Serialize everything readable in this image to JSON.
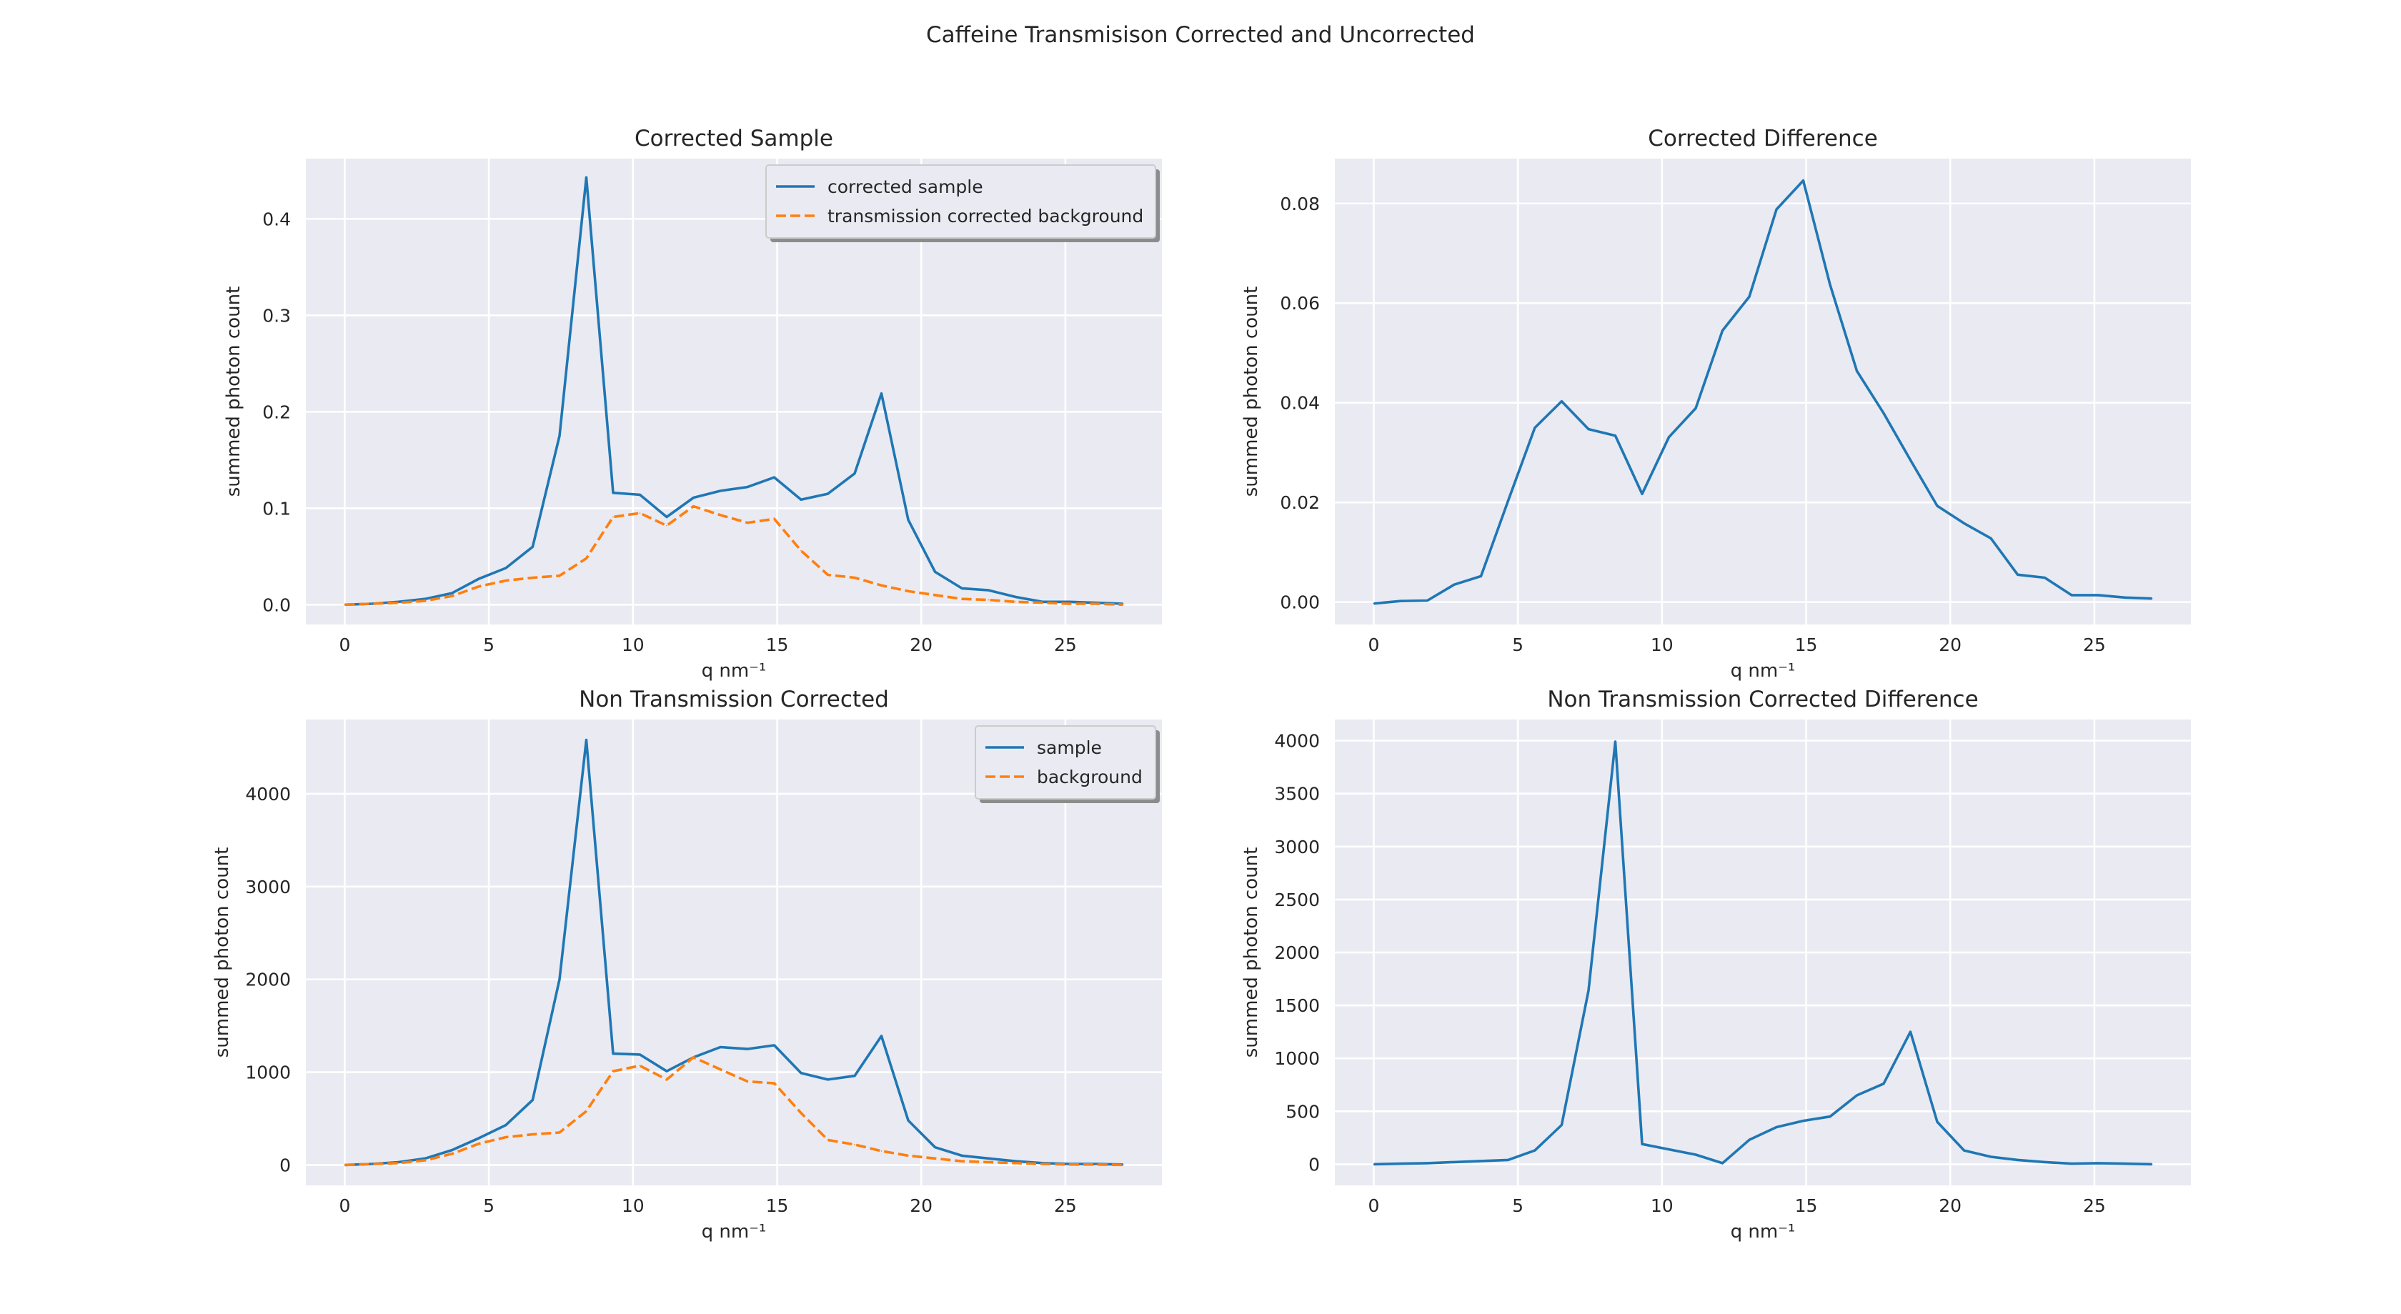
{
  "figure": {
    "suptitle": "Caffeine Transmisison Corrected and Uncorrected"
  },
  "colors": {
    "series_blue": "#1f77b4",
    "series_orange": "#ff7f0e",
    "panel_background": "#eaeaf2",
    "grid": "#ffffff"
  },
  "chart_data": [
    {
      "type": "line",
      "title": "Corrected Sample",
      "xlabel": "q nm⁻¹",
      "ylabel": "summed photon count",
      "xlim": [
        -1.35,
        28.35
      ],
      "ylim": [
        -0.0205,
        0.4625
      ],
      "xticks": [
        0,
        5,
        10,
        15,
        20,
        25
      ],
      "yticks": [
        0.0,
        0.1,
        0.2,
        0.3,
        0.4
      ],
      "ytick_labels": [
        "0.0",
        "0.1",
        "0.2",
        "0.3",
        "0.4"
      ],
      "grid": true,
      "legend": "top-right",
      "series": [
        {
          "name": "corrected sample",
          "style": "solid",
          "color": "#1f77b4",
          "x": [
            0,
            0.93,
            1.86,
            2.79,
            3.72,
            4.66,
            5.59,
            6.52,
            7.45,
            8.38,
            9.31,
            10.24,
            11.17,
            12.1,
            13.03,
            13.97,
            14.9,
            15.83,
            16.76,
            17.69,
            18.62,
            19.55,
            20.48,
            21.41,
            22.34,
            23.28,
            24.21,
            25.14,
            26.07,
            27.0
          ],
          "y": [
            0.0,
            0.001,
            0.003,
            0.006,
            0.012,
            0.027,
            0.038,
            0.06,
            0.175,
            0.443,
            0.116,
            0.114,
            0.091,
            0.111,
            0.118,
            0.122,
            0.132,
            0.109,
            0.115,
            0.136,
            0.219,
            0.088,
            0.034,
            0.017,
            0.015,
            0.008,
            0.003,
            0.003,
            0.002,
            0.001
          ]
        },
        {
          "name": "transmission corrected background",
          "style": "dashed",
          "color": "#ff7f0e",
          "x": [
            0,
            0.93,
            1.86,
            2.79,
            3.72,
            4.66,
            5.59,
            6.52,
            7.45,
            8.38,
            9.31,
            10.24,
            11.17,
            12.1,
            13.03,
            13.97,
            14.9,
            15.83,
            16.76,
            17.69,
            18.62,
            19.55,
            20.48,
            21.41,
            22.34,
            23.28,
            24.21,
            25.14,
            26.07,
            27.0
          ],
          "y": [
            0.0,
            0.001,
            0.002,
            0.004,
            0.009,
            0.019,
            0.025,
            0.028,
            0.03,
            0.048,
            0.091,
            0.095,
            0.082,
            0.102,
            0.093,
            0.085,
            0.089,
            0.056,
            0.031,
            0.028,
            0.02,
            0.014,
            0.01,
            0.006,
            0.005,
            0.003,
            0.002,
            0.001,
            0.001,
            0.0
          ]
        }
      ]
    },
    {
      "type": "line",
      "title": "Corrected Difference",
      "xlabel": "q nm⁻¹",
      "ylabel": "summed photon count",
      "xlim": [
        -1.35,
        28.35
      ],
      "ylim": [
        -0.0045,
        0.089
      ],
      "xticks": [
        0,
        5,
        10,
        15,
        20,
        25
      ],
      "yticks": [
        0.0,
        0.02,
        0.04,
        0.06,
        0.08
      ],
      "ytick_labels": [
        "0.00",
        "0.02",
        "0.04",
        "0.06",
        "0.08"
      ],
      "grid": true,
      "series": [
        {
          "color": "#1f77b4",
          "style": "solid",
          "x": [
            0,
            0.93,
            1.86,
            2.79,
            3.72,
            4.66,
            5.59,
            6.52,
            7.45,
            8.38,
            9.31,
            10.24,
            11.17,
            12.1,
            13.03,
            13.97,
            14.9,
            15.83,
            16.76,
            17.69,
            18.62,
            19.55,
            20.48,
            21.41,
            22.34,
            23.28,
            24.21,
            25.14,
            26.07,
            27.0
          ],
          "y": [
            -0.0003,
            0.0002,
            0.0003,
            0.0035,
            0.0052,
            0.0203,
            0.035,
            0.0403,
            0.0347,
            0.0334,
            0.0217,
            0.0331,
            0.0389,
            0.0545,
            0.0613,
            0.0788,
            0.0846,
            0.0637,
            0.0464,
            0.0379,
            0.0285,
            0.0193,
            0.0158,
            0.0128,
            0.0055,
            0.0049,
            0.0014,
            0.0014,
            0.0009,
            0.0007
          ]
        }
      ]
    },
    {
      "type": "line",
      "title": "Non Transmission Corrected",
      "xlabel": "q nm⁻¹",
      "ylabel": "summed photon count",
      "xlim": [
        -1.35,
        28.35
      ],
      "ylim": [
        -220,
        4800
      ],
      "xticks": [
        0,
        5,
        10,
        15,
        20,
        25
      ],
      "yticks": [
        0,
        1000,
        2000,
        3000,
        4000
      ],
      "ytick_labels": [
        "0",
        "1000",
        "2000",
        "3000",
        "4000"
      ],
      "grid": true,
      "legend": "top-right",
      "series": [
        {
          "name": "sample",
          "style": "solid",
          "color": "#1f77b4",
          "x": [
            0,
            0.93,
            1.86,
            2.79,
            3.72,
            4.66,
            5.59,
            6.52,
            7.45,
            8.38,
            9.31,
            10.24,
            11.17,
            12.1,
            13.03,
            13.97,
            14.9,
            15.83,
            16.76,
            17.69,
            18.62,
            19.55,
            20.48,
            21.41,
            22.34,
            23.28,
            24.21,
            25.14,
            26.07,
            27.0
          ],
          "y": [
            0,
            10,
            30,
            70,
            160,
            290,
            430,
            700,
            2000,
            4580,
            1200,
            1190,
            1010,
            1160,
            1270,
            1250,
            1290,
            990,
            920,
            960,
            1390,
            480,
            190,
            100,
            70,
            40,
            20,
            10,
            10,
            5
          ]
        },
        {
          "name": "background",
          "style": "dashed",
          "color": "#ff7f0e",
          "x": [
            0,
            0.93,
            1.86,
            2.79,
            3.72,
            4.66,
            5.59,
            6.52,
            7.45,
            8.38,
            9.31,
            10.24,
            11.17,
            12.1,
            13.03,
            13.97,
            14.9,
            15.83,
            16.76,
            17.69,
            18.62,
            19.55,
            20.48,
            21.41,
            22.34,
            23.28,
            24.21,
            25.14,
            26.07,
            27.0
          ],
          "y": [
            0,
            10,
            20,
            50,
            120,
            230,
            300,
            330,
            350,
            580,
            1010,
            1070,
            920,
            1160,
            1030,
            900,
            880,
            560,
            270,
            220,
            150,
            100,
            70,
            40,
            30,
            20,
            10,
            5,
            5,
            0
          ]
        }
      ]
    },
    {
      "type": "line",
      "title": "Non Transmission Corrected Difference",
      "xlabel": "q nm⁻¹",
      "ylabel": "summed photon count",
      "xlim": [
        -1.35,
        28.35
      ],
      "ylim": [
        -200,
        4200
      ],
      "xticks": [
        0,
        5,
        10,
        15,
        20,
        25
      ],
      "yticks": [
        0,
        500,
        1000,
        1500,
        2000,
        2500,
        3000,
        3500,
        4000
      ],
      "ytick_labels": [
        "0",
        "500",
        "1000",
        "1500",
        "2000",
        "2500",
        "3000",
        "3500",
        "4000"
      ],
      "grid": true,
      "series": [
        {
          "color": "#1f77b4",
          "style": "solid",
          "x": [
            0,
            0.93,
            1.86,
            2.79,
            3.72,
            4.66,
            5.59,
            6.52,
            7.45,
            8.38,
            9.31,
            10.24,
            11.17,
            12.1,
            13.03,
            13.97,
            14.9,
            15.83,
            16.76,
            17.69,
            18.62,
            19.55,
            20.48,
            21.41,
            22.34,
            23.28,
            24.21,
            25.14,
            26.07,
            27.0
          ],
          "y": [
            0,
            5,
            10,
            20,
            30,
            40,
            130,
            370,
            1640,
            3990,
            190,
            140,
            90,
            10,
            230,
            350,
            410,
            450,
            650,
            760,
            1250,
            400,
            130,
            70,
            40,
            20,
            5,
            10,
            5,
            0
          ]
        }
      ]
    }
  ]
}
